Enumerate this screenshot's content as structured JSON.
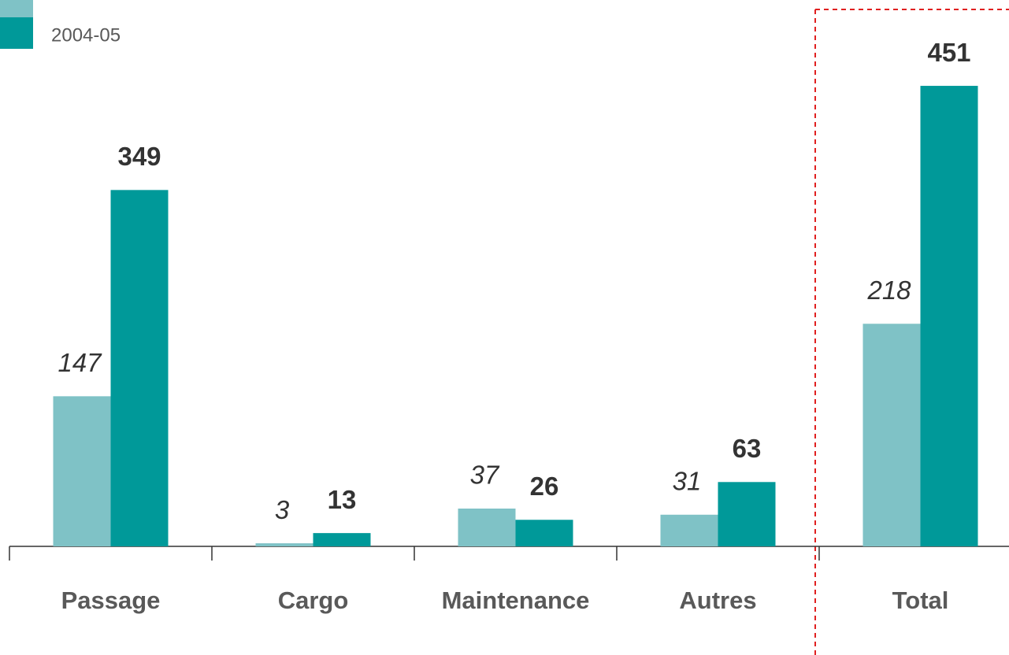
{
  "chart_data": {
    "type": "bar",
    "categories": [
      "Passage",
      "Cargo",
      "Maintenance",
      "Autres",
      "Total"
    ],
    "series": [
      {
        "color": "#7fc2c6",
        "values": [
          147,
          3,
          37,
          31,
          218
        ]
      },
      {
        "name": "2004-05",
        "color": "#009999",
        "values": [
          349,
          13,
          26,
          63,
          451
        ]
      }
    ]
  }
}
